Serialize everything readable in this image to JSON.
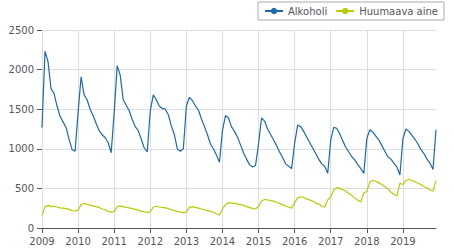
{
  "chart_data": {
    "type": "line",
    "x": [
      2009,
      2009.0833333333333,
      2009.1666666666667,
      2009.25,
      2009.3333333333333,
      2009.4166666666667,
      2009.5,
      2009.5833333333333,
      2009.6666666666667,
      2009.75,
      2009.8333333333333,
      2009.9166666666667,
      2010,
      2010.0833333333333,
      2010.1666666666667,
      2010.25,
      2010.3333333333333,
      2010.4166666666667,
      2010.5,
      2010.5833333333333,
      2010.6666666666667,
      2010.75,
      2010.8333333333333,
      2010.9166666666667,
      2011,
      2011.0833333333333,
      2011.1666666666667,
      2011.25,
      2011.3333333333333,
      2011.4166666666667,
      2011.5,
      2011.5833333333333,
      2011.6666666666667,
      2011.75,
      2011.8333333333333,
      2011.9166666666667,
      2012,
      2012.0833333333333,
      2012.1666666666667,
      2012.25,
      2012.3333333333333,
      2012.4166666666667,
      2012.5,
      2012.5833333333333,
      2012.6666666666667,
      2012.75,
      2012.8333333333333,
      2012.9166666666667,
      2013,
      2013.0833333333333,
      2013.1666666666667,
      2013.25,
      2013.3333333333333,
      2013.4166666666667,
      2013.5,
      2013.5833333333333,
      2013.6666666666667,
      2013.75,
      2013.8333333333333,
      2013.9166666666667,
      2014,
      2014.0833333333333,
      2014.1666666666667,
      2014.25,
      2014.3333333333333,
      2014.4166666666667,
      2014.5,
      2014.5833333333333,
      2014.6666666666667,
      2014.75,
      2014.8333333333333,
      2014.9166666666667,
      2015,
      2015.0833333333333,
      2015.1666666666667,
      2015.25,
      2015.3333333333333,
      2015.4166666666667,
      2015.5,
      2015.5833333333333,
      2015.6666666666667,
      2015.75,
      2015.8333333333333,
      2015.9166666666667,
      2016,
      2016.0833333333333,
      2016.1666666666667,
      2016.25,
      2016.3333333333333,
      2016.4166666666667,
      2016.5,
      2016.5833333333333,
      2016.6666666666667,
      2016.75,
      2016.8333333333333,
      2016.9166666666667,
      2017,
      2017.0833333333333,
      2017.1666666666667,
      2017.25,
      2017.3333333333333,
      2017.4166666666667,
      2017.5,
      2017.5833333333333,
      2017.6666666666667,
      2017.75,
      2017.8333333333333,
      2017.9166666666667,
      2018,
      2018.0833333333333,
      2018.1666666666667,
      2018.25,
      2018.3333333333333,
      2018.4166666666667,
      2018.5,
      2018.5833333333333,
      2018.6666666666667,
      2018.75,
      2018.8333333333333,
      2018.9166666666667,
      2019,
      2019.0833333333333,
      2019.1666666666667,
      2019.25,
      2019.3333333333333,
      2019.4166666666667,
      2019.5,
      2019.5833333333333,
      2019.6666666666667,
      2019.75,
      2019.8333333333333,
      2019.9166666666667
    ],
    "series": [
      {
        "name": "Alkoholi",
        "color": "#1a6aad",
        "values": [
          1270,
          2230,
          2100,
          1760,
          1700,
          1540,
          1410,
          1340,
          1270,
          1120,
          990,
          970,
          1460,
          1910,
          1680,
          1620,
          1500,
          1420,
          1320,
          1230,
          1180,
          1140,
          1080,
          950,
          1460,
          2050,
          1930,
          1620,
          1550,
          1480,
          1370,
          1280,
          1230,
          1120,
          1010,
          960,
          1480,
          1680,
          1620,
          1540,
          1510,
          1500,
          1430,
          1290,
          1180,
          1000,
          970,
          1000,
          1540,
          1650,
          1610,
          1540,
          1490,
          1380,
          1280,
          1180,
          1060,
          1000,
          920,
          830,
          1230,
          1420,
          1390,
          1280,
          1220,
          1150,
          1050,
          950,
          870,
          800,
          770,
          790,
          1060,
          1390,
          1350,
          1250,
          1180,
          1110,
          1040,
          960,
          890,
          810,
          780,
          750,
          1070,
          1300,
          1280,
          1220,
          1150,
          1080,
          1010,
          940,
          870,
          810,
          780,
          690,
          1110,
          1270,
          1260,
          1190,
          1100,
          1020,
          960,
          900,
          860,
          800,
          750,
          690,
          1130,
          1240,
          1210,
          1160,
          1110,
          1040,
          970,
          900,
          870,
          820,
          770,
          670,
          1130,
          1250,
          1220,
          1170,
          1120,
          1060,
          990,
          940,
          870,
          820,
          740,
          1240
        ]
      },
      {
        "name": "Huumaava aine",
        "color": "#b8cc00",
        "values": [
          160,
          270,
          285,
          270,
          275,
          265,
          255,
          250,
          245,
          235,
          220,
          215,
          225,
          295,
          310,
          300,
          285,
          280,
          270,
          260,
          240,
          230,
          210,
          200,
          210,
          270,
          280,
          270,
          260,
          255,
          245,
          235,
          225,
          210,
          205,
          195,
          205,
          265,
          275,
          265,
          260,
          255,
          245,
          230,
          220,
          210,
          200,
          195,
          200,
          260,
          270,
          260,
          250,
          240,
          230,
          220,
          210,
          200,
          180,
          165,
          240,
          295,
          320,
          315,
          310,
          305,
          295,
          285,
          270,
          260,
          245,
          240,
          275,
          340,
          360,
          355,
          345,
          340,
          325,
          310,
          295,
          275,
          265,
          250,
          320,
          380,
          395,
          385,
          365,
          355,
          340,
          315,
          305,
          275,
          265,
          355,
          395,
          480,
          510,
          500,
          485,
          465,
          435,
          410,
          380,
          350,
          330,
          445,
          460,
          580,
          600,
          590,
          570,
          550,
          520,
          495,
          455,
          425,
          405,
          565,
          550,
          600,
          615,
          600,
          585,
          565,
          548,
          525,
          505,
          480,
          468,
          595
        ]
      }
    ],
    "xlim": [
      2009,
      2019.9166666666667
    ],
    "xticks": [
      2009,
      2010,
      2011,
      2012,
      2013,
      2014,
      2015,
      2016,
      2017,
      2018,
      2019
    ],
    "ylim": [
      0,
      2500
    ],
    "yticks": [
      0,
      500,
      1000,
      1500,
      2000,
      2500
    ],
    "grid": true,
    "legend": "upper right"
  }
}
